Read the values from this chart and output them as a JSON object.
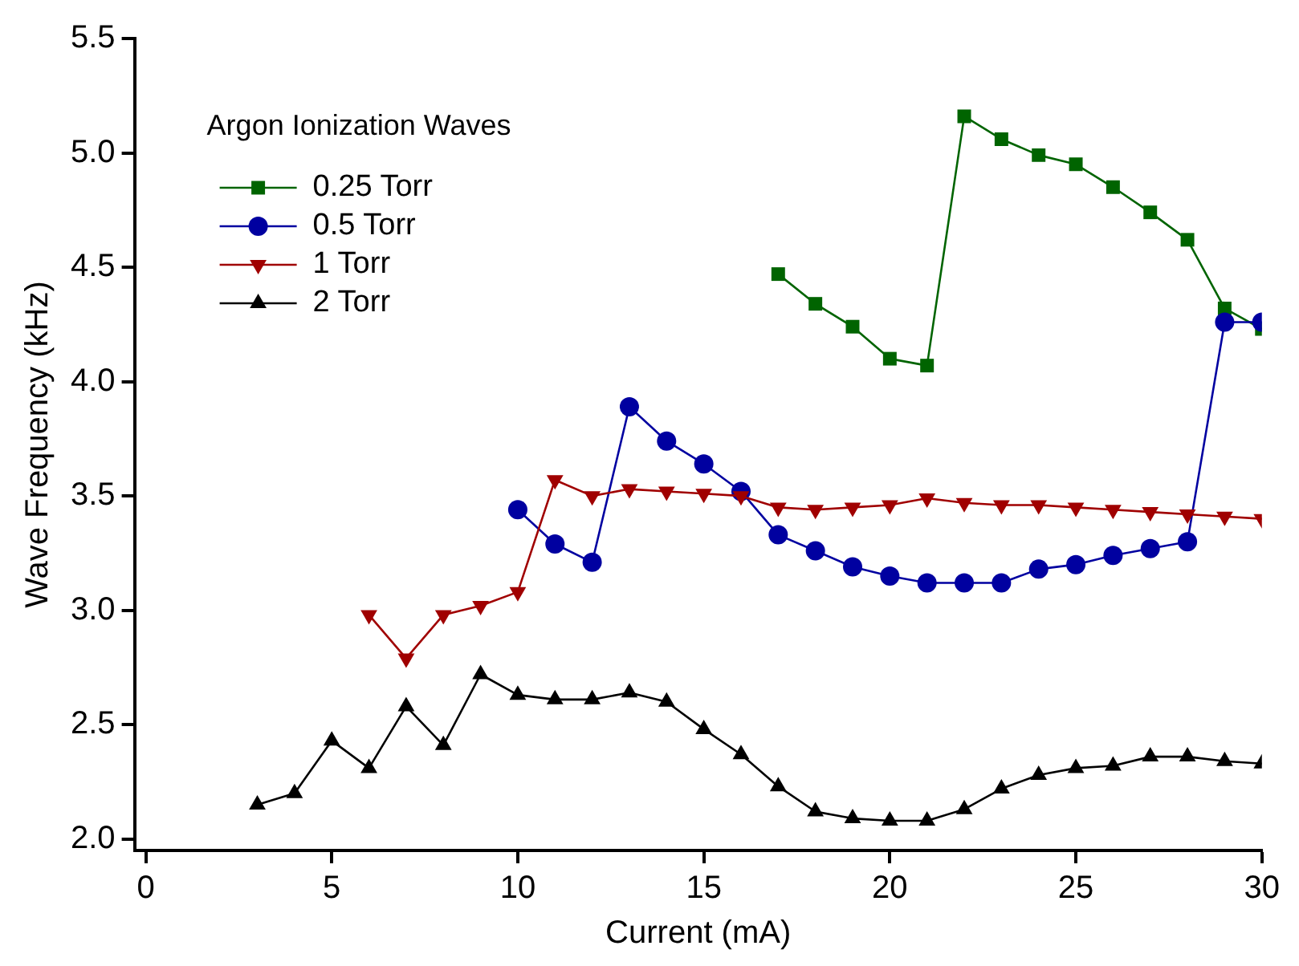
{
  "chart_data": {
    "type": "line",
    "legend_title": "Argon Ionization Waves",
    "xlabel": "Current (mA)",
    "ylabel": "Wave Frequency (kHz)",
    "xlim": [
      -0.3,
      30
    ],
    "xticks": [
      0,
      5,
      10,
      15,
      20,
      25,
      30
    ],
    "ylim": [
      1.95,
      5.5
    ],
    "yticks": [
      {
        "value": 2,
        "label": "2.0"
      },
      {
        "value": 2.5,
        "label": "2.5"
      },
      {
        "value": 3,
        "label": "3.0"
      },
      {
        "value": 3.5,
        "label": "3.5"
      },
      {
        "value": 4,
        "label": "4.0"
      },
      {
        "value": 4.5,
        "label": "4.5"
      },
      {
        "value": 5,
        "label": "5.0"
      },
      {
        "value": 5.5,
        "label": "5.5"
      }
    ],
    "grid": false,
    "legend": "top left",
    "line_style": "solid",
    "series": [
      {
        "name": "0.25 Torr",
        "color": "#006400",
        "marker": "square",
        "x": [
          17,
          18,
          19,
          20,
          21,
          22,
          23,
          24,
          25,
          26,
          27,
          28,
          29,
          30
        ],
        "values": [
          4.47,
          4.34,
          4.24,
          4.1,
          4.07,
          5.16,
          5.06,
          4.99,
          4.95,
          4.85,
          4.74,
          4.62,
          4.32,
          4.23
        ]
      },
      {
        "name": "0.5 Torr",
        "color": "#0000a0",
        "marker": "circle",
        "x": [
          10,
          11,
          12,
          13,
          14,
          15,
          16,
          17,
          18,
          19,
          20,
          21,
          22,
          23,
          24,
          25,
          26,
          27,
          28,
          29,
          30
        ],
        "values": [
          3.44,
          3.29,
          3.21,
          3.89,
          3.74,
          3.64,
          3.52,
          3.33,
          3.26,
          3.19,
          3.15,
          3.12,
          3.12,
          3.12,
          3.18,
          3.2,
          3.24,
          3.27,
          3.3,
          4.26,
          4.26
        ]
      },
      {
        "name": "1 Torr",
        "color": "#a00000",
        "marker": "triangle-down",
        "x": [
          6,
          7,
          8,
          9,
          10,
          11,
          12,
          13,
          14,
          15,
          16,
          17,
          18,
          19,
          20,
          21,
          22,
          23,
          24,
          25,
          26,
          27,
          28,
          29,
          30
        ],
        "values": [
          2.98,
          2.79,
          2.98,
          3.02,
          3.08,
          3.57,
          3.5,
          3.53,
          3.52,
          3.51,
          3.5,
          3.45,
          3.44,
          3.45,
          3.46,
          3.49,
          3.47,
          3.46,
          3.46,
          3.45,
          3.44,
          3.43,
          3.42,
          3.41,
          3.4
        ]
      },
      {
        "name": "2 Torr",
        "color": "#000000",
        "marker": "triangle",
        "x": [
          3,
          4,
          5,
          6,
          7,
          8,
          9,
          10,
          11,
          12,
          13,
          14,
          15,
          16,
          17,
          18,
          19,
          20,
          21,
          22,
          23,
          24,
          25,
          26,
          27,
          28,
          29,
          30
        ],
        "values": [
          2.15,
          2.2,
          2.43,
          2.31,
          2.58,
          2.41,
          2.72,
          2.63,
          2.61,
          2.61,
          2.64,
          2.6,
          2.48,
          2.37,
          2.23,
          2.12,
          2.09,
          2.08,
          2.08,
          2.13,
          2.22,
          2.28,
          2.31,
          2.32,
          2.36,
          2.36,
          2.34,
          2.33
        ]
      }
    ]
  }
}
